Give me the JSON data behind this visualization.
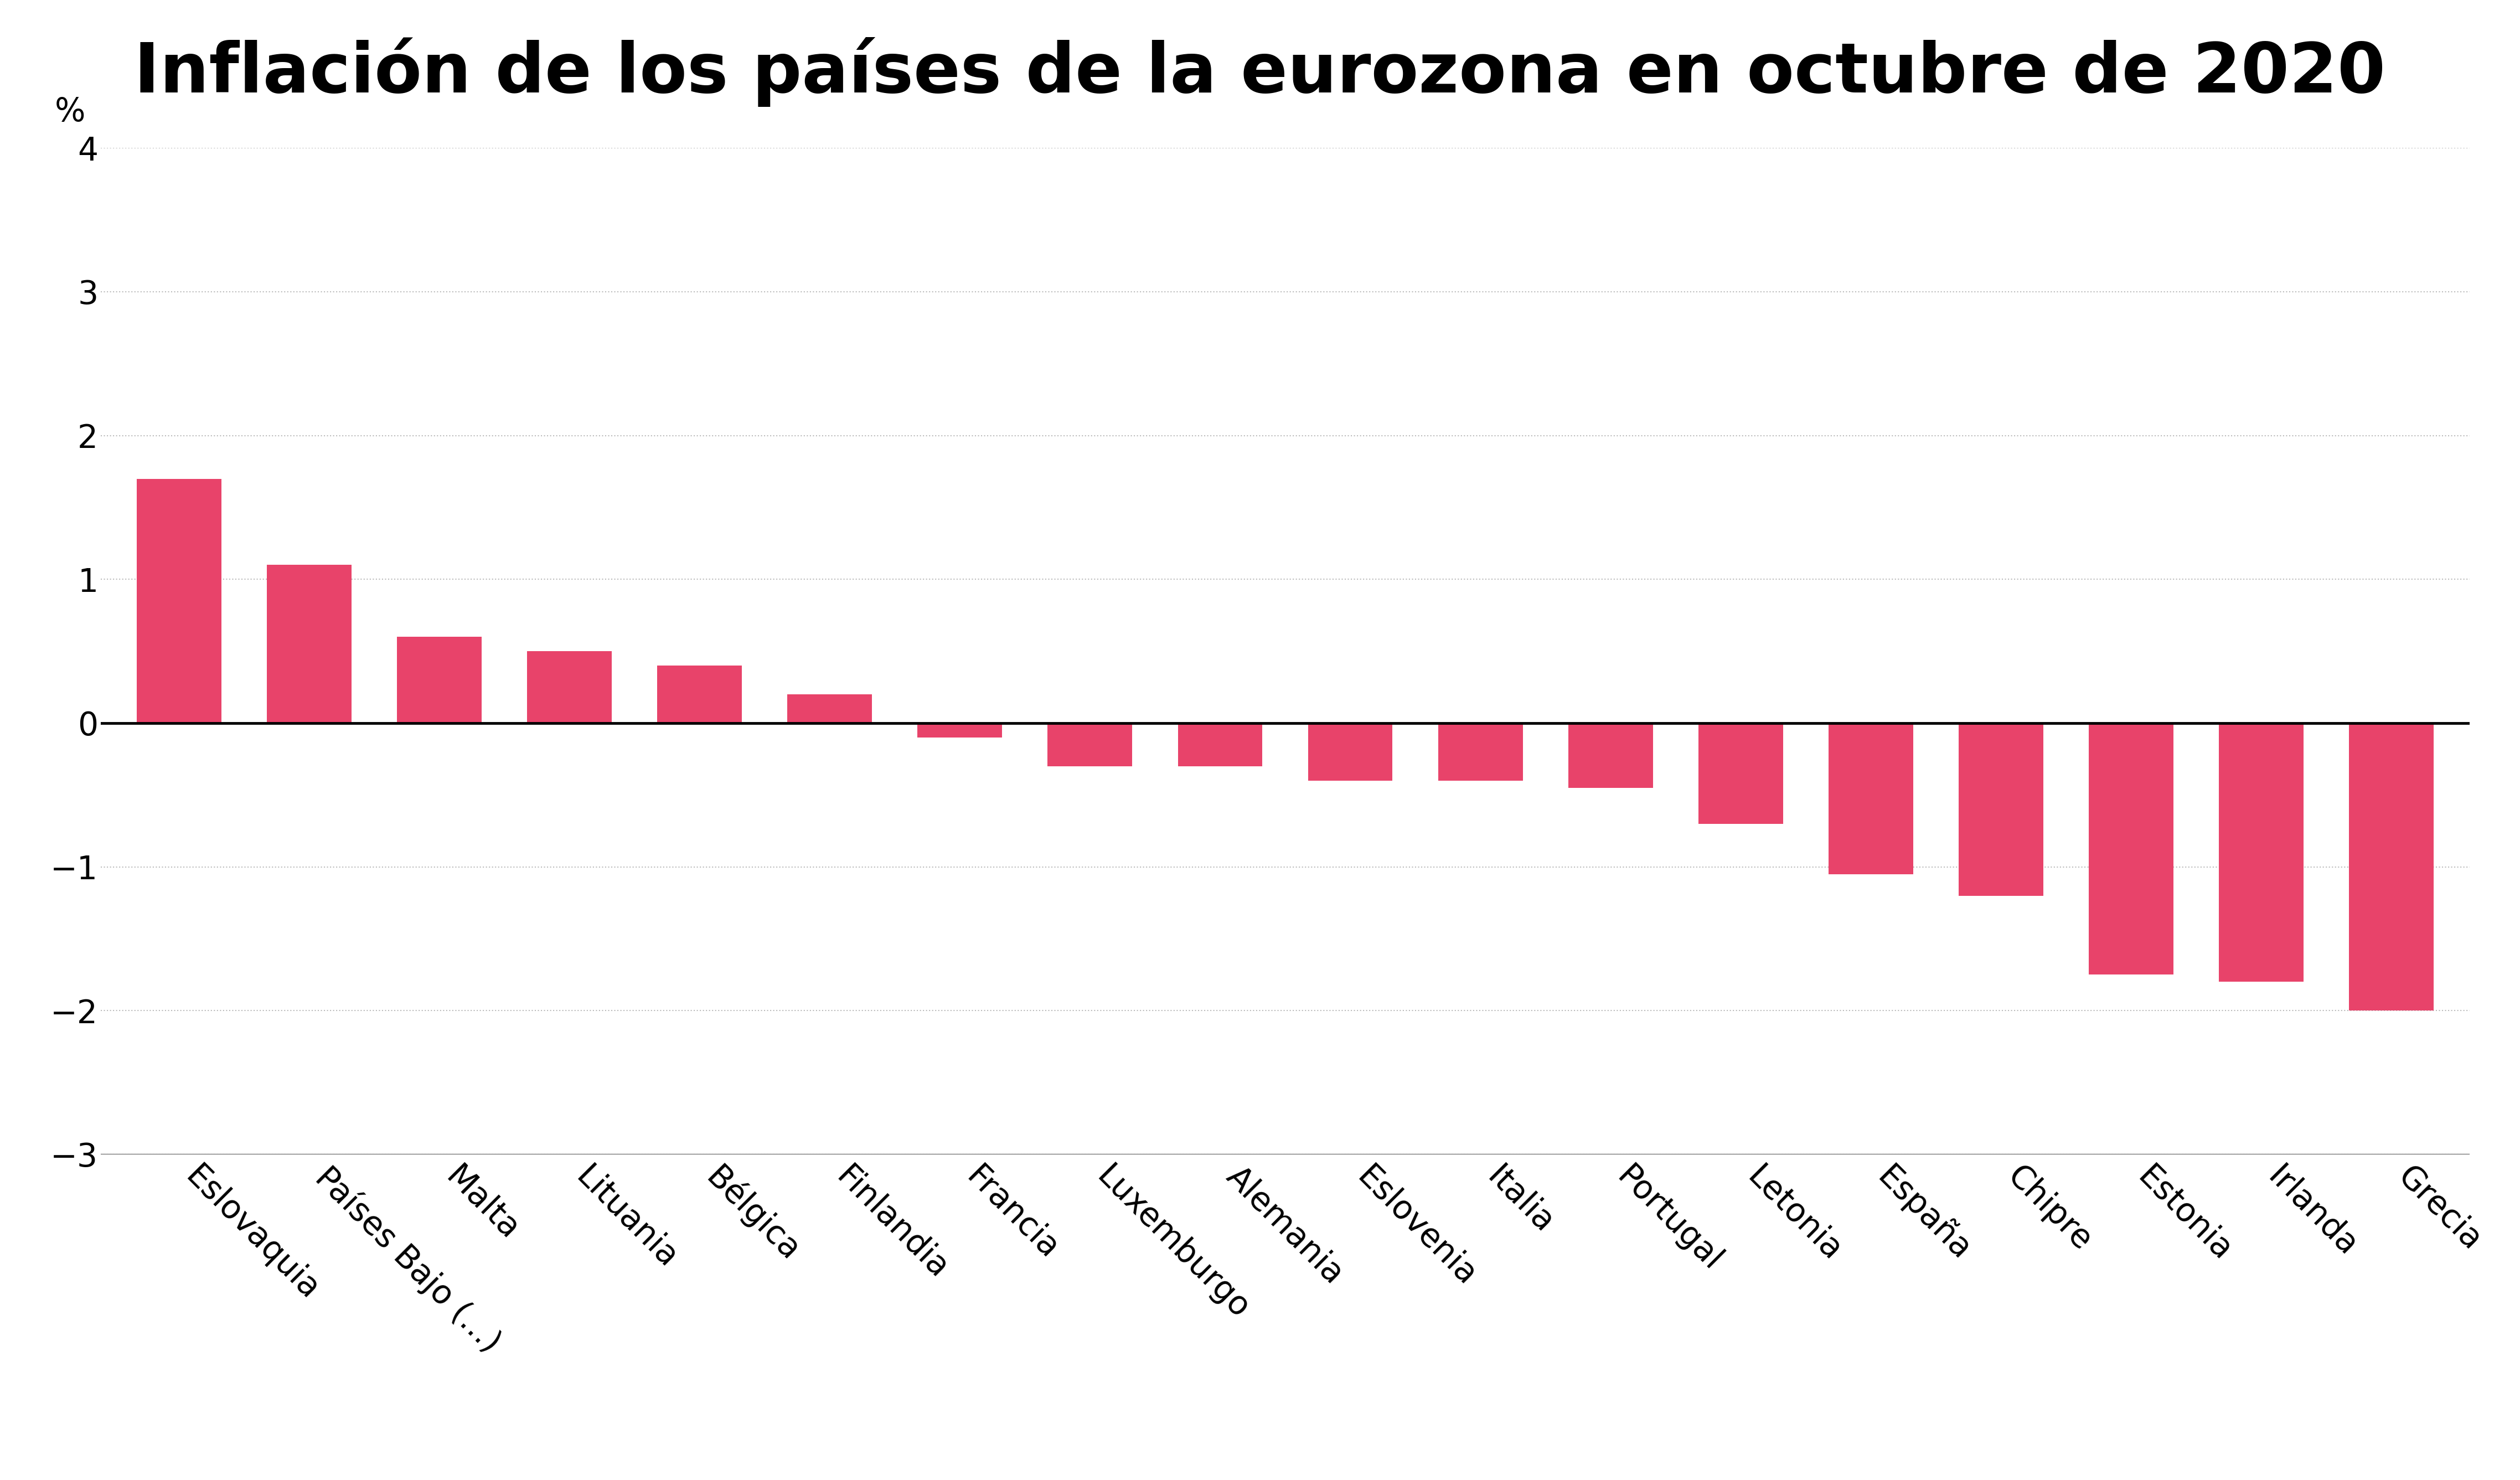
{
  "title": "Inflación de los países de la eurozona en octubre de 2020",
  "categories": [
    "Eslovaquia",
    "Países Bajo (...)",
    "Malta",
    "Lituania",
    "Bélgica",
    "Finlandia",
    "Francia",
    "Luxemburgo",
    "Alemania",
    "Eslovenia",
    "Italia",
    "Portugal",
    "Letonia",
    "España",
    "Chipre",
    "Estonia",
    "Irlanda",
    "Grecia"
  ],
  "values": [
    1.7,
    1.1,
    0.6,
    0.5,
    0.4,
    0.2,
    -0.1,
    -0.3,
    -0.3,
    -0.4,
    -0.4,
    -0.45,
    -0.7,
    -1.05,
    -1.2,
    -1.75,
    -1.8,
    -2.0
  ],
  "bar_color": "#e8436a",
  "ylabel": "%",
  "ylim": [
    -3,
    4
  ],
  "yticks": [
    -3,
    -2,
    -1,
    0,
    1,
    2,
    3,
    4
  ],
  "background_color": "#ffffff",
  "grid_color": "#bbbbbb",
  "title_fontsize": 90,
  "axis_fontsize": 42,
  "tick_fontsize": 42,
  "legend_fontsize": 42,
  "bar_width": 0.65
}
